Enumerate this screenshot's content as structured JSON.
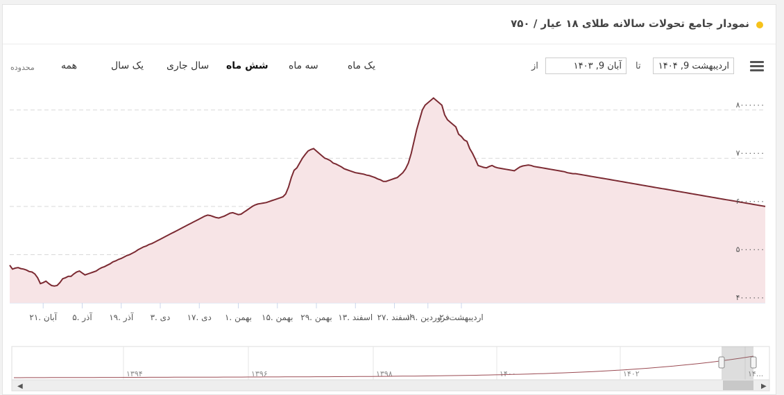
{
  "header": {
    "title": "نمودار جامع تحولات سالانه طلای ۱۸ عیار / ۷۵۰"
  },
  "toolbar": {
    "zoom_label": "محدوده",
    "ranges": [
      "همه",
      "یک سال",
      "سال جاری",
      "شش ماه",
      "سه ماه",
      "یک ماه"
    ],
    "active_range": "شش ماه",
    "from_label": "از",
    "to_label": "تا",
    "from_value": "آبان 9, ۱۴۰۳",
    "to_value": "اردیبهشت 9, ۱۴۰۴"
  },
  "colors": {
    "line": "#7b2a32",
    "fill": "#f7e4e6",
    "accent_dot": "#f6c21b",
    "grid": "#d9d9d9"
  },
  "chart_data": {
    "type": "area",
    "title": "نمودار جامع تحولات سالانه طلای ۱۸ عیار / ۷۵۰",
    "ylim": [
      4000000,
      8500000
    ],
    "y_ticks": [
      4000000,
      5000000,
      6000000,
      7000000,
      8000000
    ],
    "y_tick_labels": [
      "۴۰۰۰۰۰۰",
      "۵۰۰۰۰۰۰",
      "۶۰۰۰۰۰۰",
      "۷۰۰۰۰۰۰",
      "۸۰۰۰۰۰۰"
    ],
    "x_tick_labels": [
      "۲۱. آبان",
      "۵. آذر",
      "۱۹. آذر",
      "۳. دی",
      "۱۷. دی",
      "۱. بهمن",
      "۱۵. بهمن",
      "۲۹. بهمن",
      "۱۳. اسفند",
      "۲۷. اسفند",
      "۱۹. فروردین",
      "۲. اردیبهشت"
    ],
    "x_tick_index": [
      12,
      26,
      40,
      54,
      68,
      82,
      96,
      110,
      124,
      138,
      150,
      162
    ],
    "series": [
      {
        "values": [
          4780000,
          4700000,
          4720000,
          4730000,
          4710000,
          4700000,
          4680000,
          4650000,
          4640000,
          4600000,
          4520000,
          4400000,
          4420000,
          4450000,
          4400000,
          4360000,
          4350000,
          4360000,
          4420000,
          4500000,
          4520000,
          4550000,
          4550000,
          4600000,
          4640000,
          4660000,
          4620000,
          4580000,
          4600000,
          4620000,
          4640000,
          4660000,
          4700000,
          4730000,
          4750000,
          4780000,
          4810000,
          4850000,
          4870000,
          4900000,
          4920000,
          4950000,
          4980000,
          5000000,
          5030000,
          5060000,
          5100000,
          5130000,
          5160000,
          5180000,
          5210000,
          5230000,
          5260000,
          5290000,
          5320000,
          5350000,
          5380000,
          5410000,
          5440000,
          5470000,
          5500000,
          5530000,
          5560000,
          5590000,
          5620000,
          5650000,
          5680000,
          5710000,
          5740000,
          5770000,
          5800000,
          5820000,
          5810000,
          5790000,
          5770000,
          5760000,
          5780000,
          5800000,
          5830000,
          5860000,
          5870000,
          5850000,
          5830000,
          5840000,
          5880000,
          5920000,
          5960000,
          6000000,
          6030000,
          6050000,
          6060000,
          6070000,
          6080000,
          6100000,
          6120000,
          6140000,
          6160000,
          6180000,
          6200000,
          6260000,
          6400000,
          6600000,
          6750000,
          6800000,
          6900000,
          7000000,
          7080000,
          7150000,
          7180000,
          7200000,
          7150000,
          7100000,
          7050000,
          7000000,
          6980000,
          6950000,
          6900000,
          6880000,
          6850000,
          6820000,
          6780000,
          6760000,
          6740000,
          6720000,
          6700000,
          6690000,
          6680000,
          6670000,
          6650000,
          6640000,
          6620000,
          6600000,
          6570000,
          6550000,
          6520000,
          6520000,
          6540000,
          6560000,
          6580000,
          6600000,
          6650000,
          6700000,
          6780000,
          6900000,
          7100000,
          7350000,
          7600000,
          7800000,
          8000000,
          8100000,
          8150000,
          8200000,
          8250000,
          8200000,
          8150000,
          8100000,
          7900000,
          7800000,
          7750000,
          7700000,
          7650000,
          7500000,
          7450000,
          7380000,
          7350000,
          7200000,
          7100000,
          6980000,
          6850000,
          6830000,
          6810000,
          6800000,
          6830000,
          6850000,
          6820000,
          6800000,
          6790000,
          6780000,
          6770000,
          6760000,
          6750000,
          6740000,
          6780000,
          6820000,
          6840000,
          6850000,
          6860000,
          6850000,
          6830000,
          6820000,
          6810000,
          6800000,
          6790000,
          6780000,
          6770000,
          6760000,
          6750000,
          6740000,
          6730000,
          6720000,
          6700000,
          6690000,
          6680000,
          6680000,
          6670000,
          6660000,
          6650000,
          6640000,
          6630000,
          6620000,
          6610000,
          6600000,
          6590000,
          6580000,
          6570000,
          6560000,
          6550000,
          6540000,
          6530000,
          6520000,
          6510000,
          6500000,
          6490000,
          6480000,
          6470000,
          6460000,
          6450000,
          6440000,
          6430000,
          6420000,
          6410000,
          6400000,
          6390000,
          6380000,
          6370000,
          6360000,
          6350000,
          6340000,
          6330000,
          6320000,
          6310000,
          6300000,
          6290000,
          6280000,
          6270000,
          6260000,
          6250000,
          6240000,
          6230000,
          6220000,
          6210000,
          6200000,
          6190000,
          6180000,
          6170000,
          6160000,
          6150000,
          6140000,
          6130000,
          6120000,
          6110000,
          6100000,
          6090000,
          6080000,
          6070000,
          6060000,
          6050000,
          6040000,
          6030000,
          6020000,
          6010000,
          6000000
        ]
      }
    ],
    "navigator": {
      "tick_labels": [
        "۱۳۹۴",
        "۱۳۹۶",
        "۱۳۹۸",
        "۱۴۰۰",
        "۱۴۰۲",
        "۱۴..."
      ],
      "selected_range": "last-six-months"
    }
  }
}
